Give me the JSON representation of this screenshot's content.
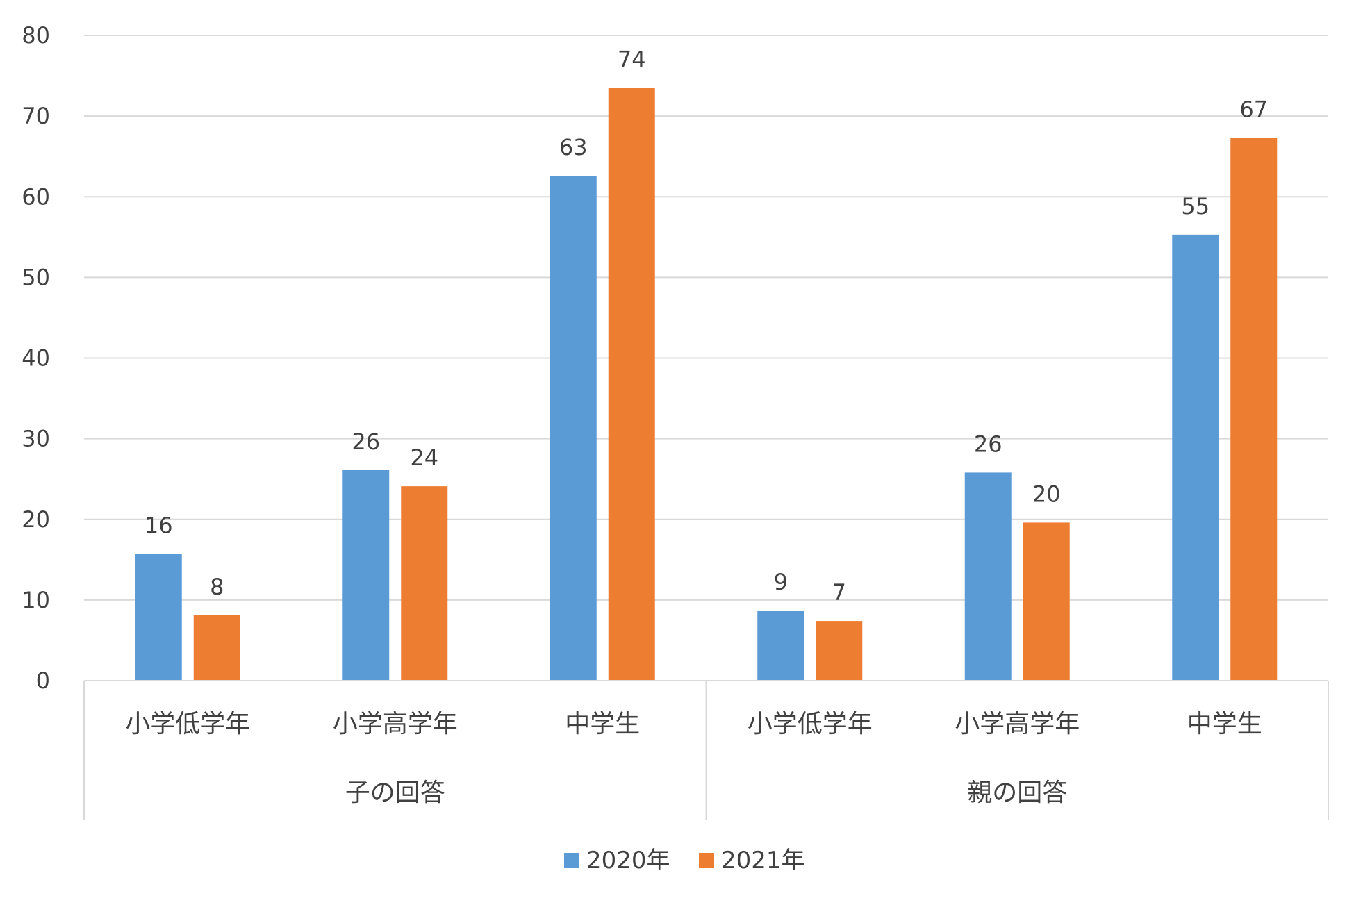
{
  "chart_data": {
    "type": "bar",
    "ylim": [
      0,
      80
    ],
    "yticks": [
      0,
      10,
      20,
      30,
      40,
      50,
      60,
      70,
      80
    ],
    "grid": true,
    "legend_position": "bottom",
    "groups": [
      {
        "label": "子の回答",
        "categories": [
          "小学低学年",
          "小学高学年",
          "中学生"
        ]
      },
      {
        "label": "親の回答",
        "categories": [
          "小学低学年",
          "小学高学年",
          "中学生"
        ]
      }
    ],
    "categories": [
      "小学低学年",
      "小学高学年",
      "中学生",
      "小学低学年",
      "小学高学年",
      "中学生"
    ],
    "series": [
      {
        "name": "2020年",
        "color": "#5B9BD5",
        "values": [
          15.7,
          26.1,
          62.6,
          8.7,
          25.8,
          55.3
        ],
        "labels": [
          "16",
          "26",
          "63",
          "9",
          "26",
          "55"
        ]
      },
      {
        "name": "2021年",
        "color": "#ED7D31",
        "values": [
          8.1,
          24.1,
          73.5,
          7.4,
          19.6,
          67.3
        ],
        "labels": [
          "8",
          "24",
          "74",
          "7",
          "20",
          "67"
        ]
      }
    ]
  }
}
